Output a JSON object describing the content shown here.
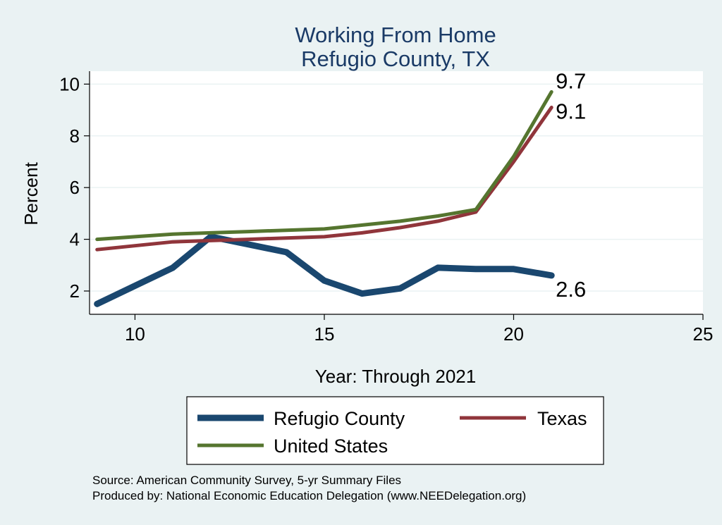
{
  "chart_data": {
    "type": "line",
    "title": [
      "Working From Home",
      "Refugio County, TX"
    ],
    "xlabel": "Year: Through 2021",
    "ylabel": "Percent",
    "xlim": [
      8.8,
      25
    ],
    "ylim": [
      1.1,
      10.5
    ],
    "xticks": [
      10,
      15,
      20,
      25
    ],
    "yticks": [
      2,
      4,
      6,
      8,
      10
    ],
    "grid": "horizontal",
    "legend_position": "bottom",
    "series": [
      {
        "name": "Refugio County",
        "color": "#1a476f",
        "x": [
          9,
          10,
          11,
          12,
          13,
          14,
          15,
          16,
          17,
          18,
          19,
          20,
          21
        ],
        "y": [
          1.5,
          2.2,
          2.9,
          4.1,
          3.8,
          3.5,
          2.4,
          1.9,
          2.1,
          2.9,
          2.85,
          2.85,
          2.6
        ],
        "end_label": "2.6"
      },
      {
        "name": "Texas",
        "color": "#90353b",
        "x": [
          9,
          10,
          11,
          12,
          13,
          14,
          15,
          16,
          17,
          18,
          19,
          20,
          21
        ],
        "y": [
          3.6,
          3.75,
          3.9,
          3.95,
          4.0,
          4.05,
          4.1,
          4.25,
          4.45,
          4.7,
          5.05,
          7.0,
          9.1
        ],
        "end_label": "9.1"
      },
      {
        "name": "United States",
        "color": "#55752f",
        "x": [
          9,
          10,
          11,
          12,
          13,
          14,
          15,
          16,
          17,
          18,
          19,
          20,
          21
        ],
        "y": [
          4.0,
          4.1,
          4.2,
          4.25,
          4.3,
          4.35,
          4.4,
          4.55,
          4.7,
          4.9,
          5.15,
          7.2,
          9.7
        ],
        "end_label": "9.7"
      }
    ]
  },
  "notes": {
    "source": "Source: American Community Survey, 5-yr Summary Files",
    "produced": "Produced by: National Economic Education Delegation (www.NEEDelegation.org)"
  }
}
